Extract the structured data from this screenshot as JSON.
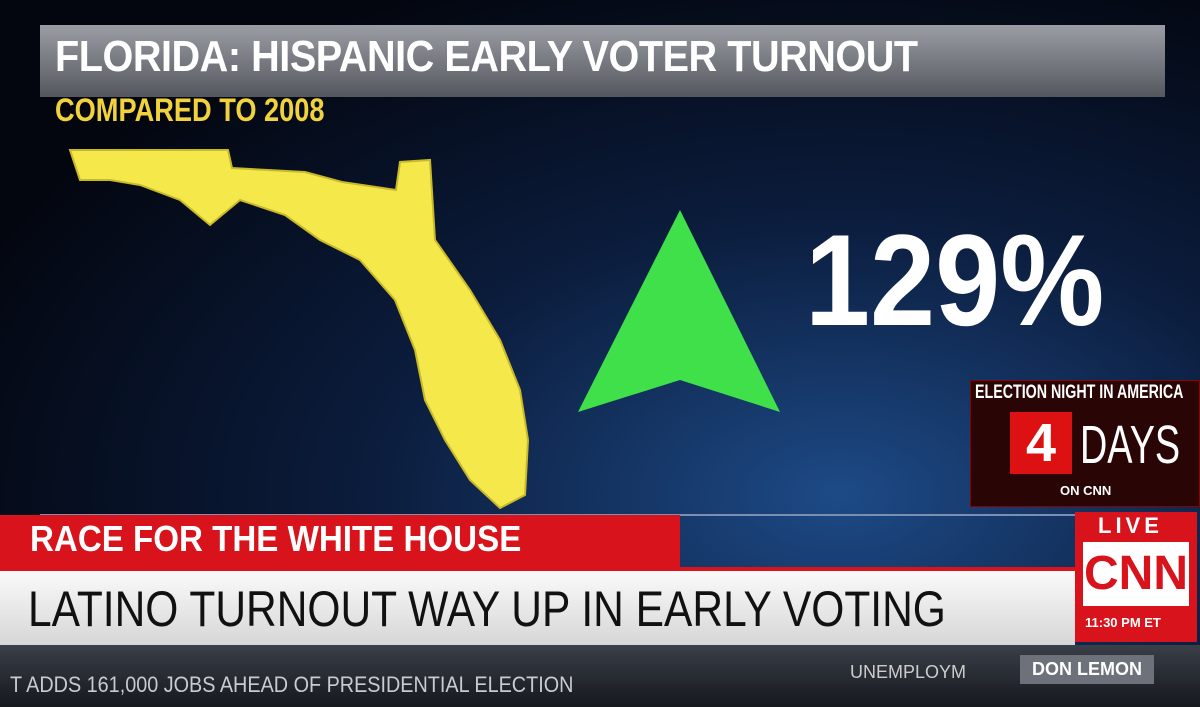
{
  "graphic": {
    "title": "FLORIDA: HISPANIC EARLY VOTER TURNOUT",
    "subtitle": "COMPARED TO 2008",
    "change": "129%"
  },
  "countdown": {
    "heading": "ELECTION NIGHT IN AMERICA",
    "number": "4",
    "unit": "DAYS",
    "network": "ON CNN"
  },
  "lower_third": {
    "tag": "RACE FOR THE WHITE HOUSE",
    "headline": "LATINO TURNOUT WAY UP IN EARLY VOTING"
  },
  "bug": {
    "live": "LIVE",
    "logo": "CNN",
    "time": "11:30 PM ET"
  },
  "ticker": {
    "story": "T ADDS 161,000 JOBS AHEAD OF PRESIDENTIAL ELECTION",
    "next": "UNEMPLOYM",
    "show": "DON LEMON"
  }
}
